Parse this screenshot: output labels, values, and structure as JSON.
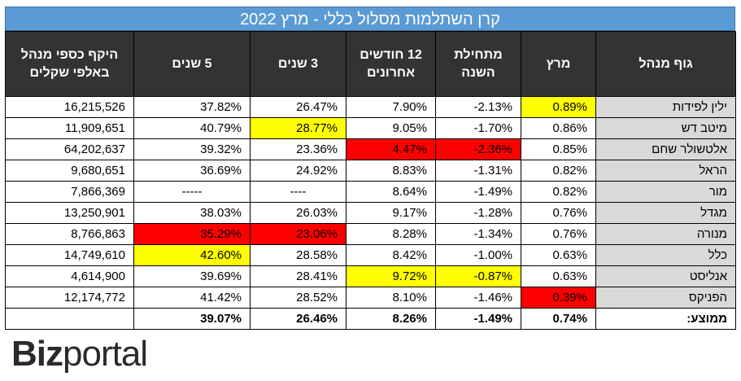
{
  "title": "קרן השתלמות מסלול כללי - מרץ 2022",
  "chart_data": {
    "type": "table",
    "columns": [
      "גוף מנהל",
      "מרץ",
      "מתחילת השנה",
      "12 חודשים אחרונים",
      "3 שנים",
      "5 שנים",
      "היקף כספי מנהל באלפי שקלים"
    ],
    "rows": [
      {
        "name": "ילין לפידות",
        "cells": [
          {
            "v": "0.89%",
            "hl": "yellow"
          },
          {
            "v": "-2.13%"
          },
          {
            "v": "7.90%"
          },
          {
            "v": "26.47%"
          },
          {
            "v": "37.82%"
          },
          {
            "v": "16,215,526"
          }
        ]
      },
      {
        "name": "מיטב דש",
        "cells": [
          {
            "v": "0.86%"
          },
          {
            "v": "-1.70%"
          },
          {
            "v": "9.05%"
          },
          {
            "v": "28.77%",
            "hl": "yellow"
          },
          {
            "v": "40.79%"
          },
          {
            "v": "11,909,651"
          }
        ]
      },
      {
        "name": "אלטשולר שחם",
        "cells": [
          {
            "v": "0.85%"
          },
          {
            "v": "-2.36%",
            "hl": "red"
          },
          {
            "v": "4.47%",
            "hl": "red"
          },
          {
            "v": "23.36%"
          },
          {
            "v": "39.32%"
          },
          {
            "v": "64,202,637"
          }
        ]
      },
      {
        "name": "הראל",
        "cells": [
          {
            "v": "0.82%"
          },
          {
            "v": "-1.31%"
          },
          {
            "v": "8.83%"
          },
          {
            "v": "24.92%"
          },
          {
            "v": "36.69%"
          },
          {
            "v": "9,680,651"
          }
        ]
      },
      {
        "name": "מור",
        "cells": [
          {
            "v": "0.82%"
          },
          {
            "v": "-1.49%"
          },
          {
            "v": "8.64%"
          },
          {
            "v": "----",
            "dash": true
          },
          {
            "v": "-----",
            "dash": true
          },
          {
            "v": "7,866,369"
          }
        ]
      },
      {
        "name": "מגדל",
        "cells": [
          {
            "v": "0.76%"
          },
          {
            "v": "-1.28%"
          },
          {
            "v": "9.17%"
          },
          {
            "v": "26.03%"
          },
          {
            "v": "38.03%"
          },
          {
            "v": "13,250,901"
          }
        ]
      },
      {
        "name": "מנורה",
        "cells": [
          {
            "v": "0.76%"
          },
          {
            "v": "-1.34%"
          },
          {
            "v": "8.28%"
          },
          {
            "v": "23.06%",
            "hl": "red"
          },
          {
            "v": "35.29%",
            "hl": "red"
          },
          {
            "v": "8,766,863"
          }
        ]
      },
      {
        "name": "כלל",
        "cells": [
          {
            "v": "0.63%"
          },
          {
            "v": "-1.00%"
          },
          {
            "v": "8.42%"
          },
          {
            "v": "28.58%"
          },
          {
            "v": "42.60%",
            "hl": "yellow"
          },
          {
            "v": "14,749,610"
          }
        ]
      },
      {
        "name": "אנליסט",
        "cells": [
          {
            "v": "0.63%"
          },
          {
            "v": "-0.87%",
            "hl": "yellow"
          },
          {
            "v": "9.72%",
            "hl": "yellow"
          },
          {
            "v": "28.41%"
          },
          {
            "v": "39.69%"
          },
          {
            "v": "4,614,900"
          }
        ]
      },
      {
        "name": "הפניקס",
        "cells": [
          {
            "v": "0.39%",
            "hl": "red"
          },
          {
            "v": "-1.46%"
          },
          {
            "v": "8.10%"
          },
          {
            "v": "28.52%"
          },
          {
            "v": "41.42%"
          },
          {
            "v": "12,174,772"
          }
        ]
      }
    ],
    "average": {
      "name": "ממוצע:",
      "cells": [
        "0.74%",
        "-1.49%",
        "8.26%",
        "26.46%",
        "39.07%",
        ""
      ]
    }
  },
  "colors": {
    "header_bg": "#333333",
    "title_bg": "#5b9bd5",
    "highlight_yellow": "#ffff00",
    "highlight_red": "#ff0000",
    "name_bg": "#d9d9d9"
  },
  "logo": {
    "part1": "Biz",
    "part2": "portal"
  }
}
